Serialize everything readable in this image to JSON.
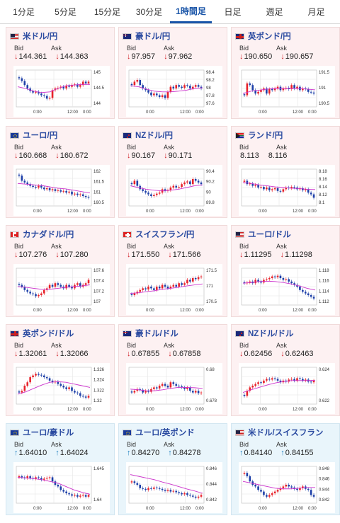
{
  "tabs": [
    {
      "label": "1分足",
      "active": false
    },
    {
      "label": "5分足",
      "active": false
    },
    {
      "label": "15分足",
      "active": false
    },
    {
      "label": "30分足",
      "active": false
    },
    {
      "label": "1時間足",
      "active": true
    },
    {
      "label": "日足",
      "active": false
    },
    {
      "label": "週足",
      "active": false
    },
    {
      "label": "月足",
      "active": false
    }
  ],
  "labels": {
    "bid": "Bid",
    "ask": "Ask"
  },
  "x_ticks": [
    "0:00",
    "12:00",
    "0:00"
  ],
  "colors": {
    "up": "#e8222a",
    "down": "#1d3fa8",
    "ma": "#cc33cc",
    "arrow_down": "#d0242b",
    "arrow_up": "#1d7fbf"
  },
  "cards": [
    {
      "pair": "米ドル/円",
      "flag": "us",
      "theme": "pink",
      "dir": "down",
      "bid": "144.361",
      "ask": "144.363",
      "y_ticks": [
        "145",
        "144.5",
        "144"
      ],
      "y_range": [
        143.8,
        145.3
      ],
      "ma_points": [
        0.55,
        0.5,
        0.42,
        0.38,
        0.4,
        0.5,
        0.58,
        0.6,
        0.62,
        0.62
      ],
      "closes": [
        0.8,
        0.72,
        0.6,
        0.5,
        0.42,
        0.38,
        0.4,
        0.35,
        0.3,
        0.28,
        0.2,
        0.22,
        0.45,
        0.5,
        0.52,
        0.55,
        0.5,
        0.58,
        0.55,
        0.6,
        0.62,
        0.55,
        0.6,
        0.7,
        0.65,
        0.7
      ]
    },
    {
      "pair": "豪ドル/円",
      "flag": "au",
      "theme": "pink",
      "dir": "down",
      "bid": "97.957",
      "ask": "97.962",
      "y_ticks": [
        "98.4",
        "98.2",
        "98",
        "97.8",
        "97.6"
      ],
      "y_range": [
        97.5,
        98.5
      ],
      "ma_points": [
        0.58,
        0.55,
        0.48,
        0.42,
        0.4,
        0.4,
        0.42,
        0.45,
        0.5,
        0.52
      ],
      "closes": [
        0.6,
        0.7,
        0.75,
        0.6,
        0.5,
        0.45,
        0.38,
        0.3,
        0.35,
        0.3,
        0.25,
        0.3,
        0.22,
        0.4,
        0.55,
        0.5,
        0.6,
        0.55,
        0.52,
        0.6,
        0.58,
        0.5,
        0.55,
        0.6,
        0.55,
        0.5
      ]
    },
    {
      "pair": "英ポンド/円",
      "flag": "gb",
      "theme": "pink",
      "dir": "down",
      "bid": "190.650",
      "ask": "190.657",
      "y_ticks": [
        "191.5",
        "191",
        "190.5"
      ],
      "y_range": [
        190.3,
        192.0
      ],
      "ma_points": [
        0.35,
        0.42,
        0.45,
        0.48,
        0.5,
        0.5,
        0.5,
        0.5,
        0.48,
        0.46
      ],
      "closes": [
        0.3,
        0.65,
        0.6,
        0.45,
        0.35,
        0.4,
        0.45,
        0.5,
        0.35,
        0.48,
        0.45,
        0.5,
        0.55,
        0.45,
        0.5,
        0.52,
        0.48,
        0.6,
        0.5,
        0.55,
        0.45,
        0.5,
        0.48,
        0.4,
        0.38,
        0.35
      ]
    },
    {
      "pair": "ユーロ/円",
      "flag": "eu",
      "theme": "pink",
      "dir": "down",
      "bid": "160.668",
      "ask": "160.672",
      "y_ticks": [
        "162",
        "161.5",
        "161",
        "160.5"
      ],
      "y_range": [
        160.3,
        162.2
      ],
      "ma_points": [
        0.62,
        0.6,
        0.58,
        0.56,
        0.52,
        0.48,
        0.46,
        0.42,
        0.38,
        0.34
      ],
      "closes": [
        0.85,
        0.7,
        0.65,
        0.6,
        0.55,
        0.52,
        0.5,
        0.55,
        0.5,
        0.45,
        0.48,
        0.42,
        0.45,
        0.4,
        0.42,
        0.38,
        0.4,
        0.35,
        0.38,
        0.3,
        0.32,
        0.28,
        0.3,
        0.25,
        0.22,
        0.2
      ]
    },
    {
      "pair": "NZドル/円",
      "flag": "nz",
      "theme": "pink",
      "dir": "down",
      "bid": "90.167",
      "ask": "90.171",
      "y_ticks": [
        "90.4",
        "90.2",
        "90",
        "89.8"
      ],
      "y_range": [
        89.7,
        90.5
      ],
      "ma_points": [
        0.55,
        0.5,
        0.45,
        0.42,
        0.4,
        0.42,
        0.45,
        0.5,
        0.55,
        0.58
      ],
      "closes": [
        0.6,
        0.7,
        0.55,
        0.45,
        0.4,
        0.35,
        0.3,
        0.25,
        0.28,
        0.32,
        0.35,
        0.45,
        0.4,
        0.42,
        0.5,
        0.55,
        0.5,
        0.52,
        0.6,
        0.65,
        0.68,
        0.6,
        0.75,
        0.7,
        0.65,
        0.6
      ]
    },
    {
      "pair": "ランド/円",
      "flag": "za",
      "theme": "pink",
      "dir": "none",
      "bid": "8.113",
      "ask": "8.116",
      "y_ticks": [
        "8.18",
        "8.16",
        "8.14",
        "8.12",
        "8.1"
      ],
      "y_range": [
        8.09,
        8.19
      ],
      "ma_points": [
        0.65,
        0.62,
        0.58,
        0.55,
        0.52,
        0.5,
        0.48,
        0.47,
        0.45,
        0.44
      ],
      "closes": [
        0.7,
        0.6,
        0.62,
        0.55,
        0.58,
        0.5,
        0.52,
        0.45,
        0.5,
        0.42,
        0.45,
        0.48,
        0.4,
        0.38,
        0.45,
        0.5,
        0.48,
        0.52,
        0.5,
        0.45,
        0.48,
        0.42,
        0.45,
        0.35,
        0.3,
        0.2
      ]
    },
    {
      "pair": "カナダドル/円",
      "flag": "ca",
      "theme": "pink",
      "dir": "down",
      "bid": "107.276",
      "ask": "107.280",
      "y_ticks": [
        "107.6",
        "107.4",
        "107.2",
        "107"
      ],
      "y_range": [
        106.8,
        107.7
      ],
      "ma_points": [
        0.5,
        0.48,
        0.45,
        0.42,
        0.42,
        0.45,
        0.48,
        0.5,
        0.52,
        0.55
      ],
      "closes": [
        0.55,
        0.5,
        0.4,
        0.35,
        0.3,
        0.28,
        0.22,
        0.25,
        0.3,
        0.4,
        0.45,
        0.55,
        0.5,
        0.6,
        0.55,
        0.5,
        0.45,
        0.55,
        0.5,
        0.45,
        0.55,
        0.6,
        0.5,
        0.55,
        0.6,
        0.7
      ]
    },
    {
      "pair": "スイスフラン/円",
      "flag": "ch",
      "theme": "pink",
      "dir": "down",
      "bid": "171.550",
      "ask": "171.566",
      "y_ticks": [
        "171.5",
        "171",
        "170.5"
      ],
      "y_range": [
        170.3,
        171.8
      ],
      "ma_points": [
        0.3,
        0.32,
        0.35,
        0.38,
        0.42,
        0.45,
        0.48,
        0.52,
        0.55,
        0.58
      ],
      "closes": [
        0.25,
        0.3,
        0.35,
        0.4,
        0.45,
        0.42,
        0.5,
        0.45,
        0.4,
        0.5,
        0.45,
        0.55,
        0.5,
        0.45,
        0.5,
        0.55,
        0.5,
        0.6,
        0.55,
        0.6,
        0.7,
        0.65,
        0.75,
        0.72,
        0.78,
        0.8
      ]
    },
    {
      "pair": "ユーロ/ドル",
      "flag": "us",
      "theme": "pink",
      "dir": "down",
      "bid": "1.11295",
      "ask": "1.11298",
      "y_ticks": [
        "1.118",
        "1.116",
        "1.114",
        "1.112"
      ],
      "y_range": [
        1.111,
        1.119
      ],
      "ma_points": [
        0.6,
        0.62,
        0.65,
        0.66,
        0.65,
        0.62,
        0.58,
        0.52,
        0.45,
        0.4
      ],
      "closes": [
        0.6,
        0.62,
        0.65,
        0.6,
        0.7,
        0.65,
        0.62,
        0.7,
        0.72,
        0.75,
        0.8,
        0.78,
        0.82,
        0.75,
        0.7,
        0.72,
        0.65,
        0.6,
        0.55,
        0.5,
        0.4,
        0.35,
        0.3,
        0.25,
        0.2,
        0.15
      ]
    },
    {
      "pair": "英ポンド/ドル",
      "flag": "gb",
      "theme": "pink",
      "dir": "down",
      "bid": "1.32061",
      "ask": "1.32066",
      "y_ticks": [
        "1.326",
        "1.324",
        "1.322",
        "1.32"
      ],
      "y_range": [
        1.319,
        1.327
      ],
      "ma_points": [
        0.25,
        0.32,
        0.42,
        0.52,
        0.6,
        0.62,
        0.6,
        0.55,
        0.5,
        0.45
      ],
      "closes": [
        0.3,
        0.35,
        0.5,
        0.6,
        0.75,
        0.8,
        0.85,
        0.82,
        0.8,
        0.75,
        0.72,
        0.65,
        0.6,
        0.62,
        0.55,
        0.5,
        0.45,
        0.4,
        0.45,
        0.35,
        0.3,
        0.28,
        0.2,
        0.18,
        0.15,
        0.2
      ]
    },
    {
      "pair": "豪ドル/ドル",
      "flag": "au",
      "theme": "pink",
      "dir": "down",
      "bid": "0.67855",
      "ask": "0.67858",
      "y_ticks": [
        "0.68",
        "0.678"
      ],
      "y_range": [
        0.677,
        0.6812
      ],
      "ma_points": [
        0.4,
        0.38,
        0.35,
        0.35,
        0.38,
        0.42,
        0.45,
        0.45,
        0.44,
        0.42
      ],
      "closes": [
        0.3,
        0.35,
        0.4,
        0.38,
        0.3,
        0.35,
        0.32,
        0.4,
        0.45,
        0.42,
        0.5,
        0.55,
        0.5,
        0.45,
        0.6,
        0.55,
        0.5,
        0.48,
        0.45,
        0.4,
        0.45,
        0.35,
        0.3,
        0.35,
        0.28,
        0.3
      ]
    },
    {
      "pair": "NZドル/ドル",
      "flag": "nz",
      "theme": "pink",
      "dir": "down",
      "bid": "0.62456",
      "ask": "0.62463",
      "y_ticks": [
        "0.624",
        "0.622"
      ],
      "y_range": [
        0.6208,
        0.6258
      ],
      "ma_points": [
        0.3,
        0.38,
        0.45,
        0.52,
        0.58,
        0.62,
        0.65,
        0.65,
        0.65,
        0.66
      ],
      "closes": [
        0.2,
        0.35,
        0.45,
        0.5,
        0.55,
        0.6,
        0.58,
        0.65,
        0.7,
        0.68,
        0.72,
        0.7,
        0.65,
        0.6,
        0.65,
        0.62,
        0.68,
        0.7,
        0.65,
        0.72,
        0.7,
        0.65,
        0.68,
        0.62,
        0.6,
        0.65
      ]
    },
    {
      "pair": "ユーロ/豪ドル",
      "flag": "eu",
      "theme": "blue",
      "dir": "up",
      "bid": "1.64010",
      "ask": "1.64024",
      "y_ticks": [
        "1.645",
        "1.64"
      ],
      "y_range": [
        1.638,
        1.6485
      ],
      "ma_points": [
        0.72,
        0.7,
        0.68,
        0.65,
        0.6,
        0.55,
        0.45,
        0.35,
        0.28,
        0.22
      ],
      "closes": [
        0.75,
        0.72,
        0.7,
        0.75,
        0.7,
        0.68,
        0.72,
        0.7,
        0.65,
        0.68,
        0.7,
        0.72,
        0.6,
        0.5,
        0.45,
        0.35,
        0.3,
        0.25,
        0.22,
        0.18,
        0.2,
        0.15,
        0.18,
        0.2,
        0.15,
        0.2
      ]
    },
    {
      "pair": "ユーロ/英ポンド",
      "flag": "eu",
      "theme": "blue",
      "dir": "up",
      "bid": "0.84270",
      "ask": "0.84278",
      "y_ticks": [
        "0.846",
        "0.844",
        "0.842"
      ],
      "y_range": [
        0.8412,
        0.8466
      ],
      "ma_points": [
        0.8,
        0.75,
        0.7,
        0.65,
        0.58,
        0.52,
        0.45,
        0.38,
        0.32,
        0.25
      ],
      "closes": [
        0.6,
        0.55,
        0.5,
        0.4,
        0.38,
        0.35,
        0.4,
        0.38,
        0.42,
        0.4,
        0.38,
        0.35,
        0.32,
        0.35,
        0.3,
        0.32,
        0.28,
        0.25,
        0.22,
        0.25,
        0.2,
        0.18,
        0.15,
        0.12,
        0.15,
        0.2
      ]
    },
    {
      "pair": "米ドル/スイスフラン",
      "flag": "us",
      "theme": "blue",
      "dir": "up",
      "bid": "0.84140",
      "ask": "0.84155",
      "y_ticks": [
        "0.848",
        "0.846",
        "0.844",
        "0.842"
      ],
      "y_range": [
        0.8408,
        0.8486
      ],
      "ma_points": [
        0.6,
        0.55,
        0.5,
        0.45,
        0.4,
        0.38,
        0.38,
        0.4,
        0.42,
        0.42
      ],
      "closes": [
        0.85,
        0.75,
        0.6,
        0.5,
        0.45,
        0.35,
        0.3,
        0.2,
        0.15,
        0.2,
        0.25,
        0.3,
        0.35,
        0.4,
        0.45,
        0.5,
        0.45,
        0.42,
        0.38,
        0.35,
        0.4,
        0.45,
        0.38,
        0.35,
        0.2,
        0.15
      ]
    }
  ]
}
